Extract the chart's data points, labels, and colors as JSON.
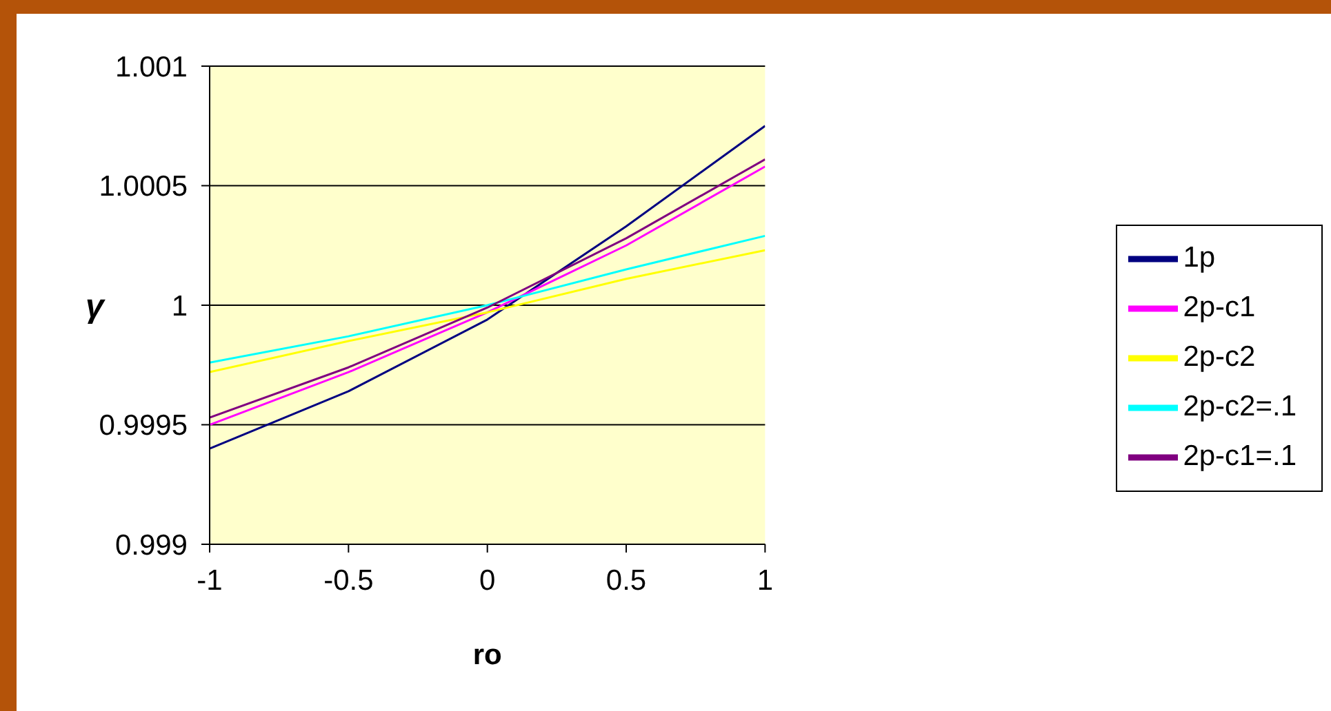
{
  "chart_data": {
    "type": "line",
    "xlabel": "ro",
    "ylabel": "γ",
    "x": [
      -1,
      -0.5,
      0,
      0.5,
      1
    ],
    "series": [
      {
        "name": "1p",
        "color": "#000080",
        "values": [
          0.9994,
          0.99964,
          0.99994,
          1.00033,
          1.00075
        ]
      },
      {
        "name": "2p-c1",
        "color": "#ff00ff",
        "values": [
          0.9995,
          0.99972,
          0.99997,
          1.00025,
          1.00058
        ]
      },
      {
        "name": "2p-c2",
        "color": "#ffff00",
        "values": [
          0.99972,
          0.99985,
          0.99997,
          1.00011,
          1.00023
        ]
      },
      {
        "name": "2p-c2=.1",
        "color": "#00ffff",
        "values": [
          0.99976,
          0.99987,
          1.0,
          1.00015,
          1.00029
        ]
      },
      {
        "name": "2p-c1=.1",
        "color": "#800080",
        "values": [
          0.99953,
          0.99974,
          0.99999,
          1.00028,
          1.00061
        ]
      }
    ],
    "xlim": [
      -1,
      1
    ],
    "xticks": [
      -1,
      -0.5,
      0,
      0.5,
      1
    ],
    "ylim": [
      0.999,
      1.001
    ],
    "yticks": [
      0.999,
      0.9995,
      1,
      1.0005,
      1.001
    ],
    "grid": "y",
    "legend": "right",
    "marker": "none",
    "line_style": "solid"
  }
}
